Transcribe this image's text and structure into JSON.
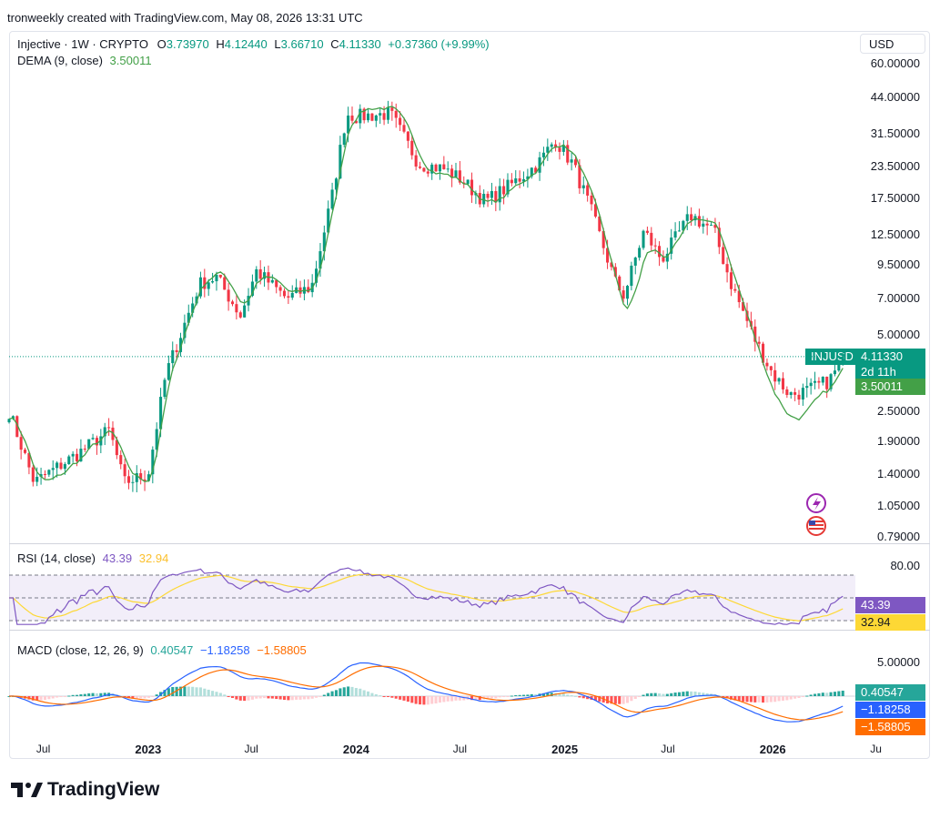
{
  "attribution": "tronweekly created with TradingView.com, May 08, 2026 13:31 UTC",
  "currency_button": "USD",
  "symbol": {
    "name": "Injective · 1W · CRYPTO",
    "open_label": "O",
    "open": "3.73970",
    "high_label": "H",
    "high": "4.12440",
    "low_label": "L",
    "low": "3.66710",
    "close_label": "C",
    "close": "4.11330",
    "change": "+0.37360 (+9.99%)"
  },
  "dema": {
    "label": "DEMA (9, close)",
    "value": "3.50011"
  },
  "rsi": {
    "label": "RSI (14, close)",
    "value": "43.39",
    "ma_value": "32.94",
    "level_label": "80.00"
  },
  "macd": {
    "label": "MACD (close, 12, 26, 9)",
    "hist": "0.40547",
    "macd": "−1.18258",
    "signal": "−1.58805",
    "level_label": "5.00000"
  },
  "price_tags": {
    "ticker": "INJUSD",
    "price": "4.11330",
    "countdown": "2d 11h",
    "dema": "3.50011"
  },
  "price_axis": [
    "60.00000",
    "44.00000",
    "31.50000",
    "23.50000",
    "17.50000",
    "12.50000",
    "9.50000",
    "7.00000",
    "5.00000",
    "2.50000",
    "1.90000",
    "1.40000",
    "1.05000",
    "0.79000"
  ],
  "time_axis": [
    {
      "label": "Jul",
      "bold": false
    },
    {
      "label": "2023",
      "bold": true
    },
    {
      "label": "Jul",
      "bold": false
    },
    {
      "label": "2024",
      "bold": true
    },
    {
      "label": "Jul",
      "bold": false
    },
    {
      "label": "2025",
      "bold": true
    },
    {
      "label": "Jul",
      "bold": false
    },
    {
      "label": "2026",
      "bold": true
    },
    {
      "label": "Ju",
      "bold": false
    }
  ],
  "logo_text": "TradingView",
  "colors": {
    "up": "#089981",
    "down": "#f23645",
    "dema": "#43a047",
    "rsi": "#7e57c2",
    "rsi_ma": "#fdd835",
    "macd": "#2962ff",
    "signal": "#ff6d00"
  },
  "chart_data": {
    "type": "candlestick",
    "x_range": [
      "2022-05",
      "2026-05"
    ],
    "y_scale": "log",
    "y_range": [
      0.79,
      60
    ],
    "anchors": [
      [
        "2022-05-02",
        2.5
      ],
      [
        "2022-06-15",
        1.3
      ],
      [
        "2022-09-01",
        1.7
      ],
      [
        "2022-10-25",
        2.1
      ],
      [
        "2022-11-20",
        1.3
      ],
      [
        "2023-01-01",
        1.4
      ],
      [
        "2023-02-01",
        3.5
      ],
      [
        "2023-04-01",
        8.0
      ],
      [
        "2023-05-01",
        8.5
      ],
      [
        "2023-06-12",
        6.0
      ],
      [
        "2023-07-10",
        9.0
      ],
      [
        "2023-09-01",
        7.0
      ],
      [
        "2023-10-15",
        7.8
      ],
      [
        "2023-11-20",
        18.0
      ],
      [
        "2023-12-15",
        38.0
      ],
      [
        "2024-01-01",
        37.0
      ],
      [
        "2024-03-01",
        38.0
      ],
      [
        "2024-04-20",
        24.0
      ],
      [
        "2024-06-01",
        23.0
      ],
      [
        "2024-07-01",
        21.0
      ],
      [
        "2024-08-15",
        17.0
      ],
      [
        "2024-10-01",
        20.0
      ],
      [
        "2024-11-15",
        24.0
      ],
      [
        "2024-12-15",
        30.0
      ],
      [
        "2025-01-15",
        24.0
      ],
      [
        "2025-02-15",
        16.0
      ],
      [
        "2025-04-01",
        8.0
      ],
      [
        "2025-04-15",
        7.2
      ],
      [
        "2025-05-20",
        13.0
      ],
      [
        "2025-06-20",
        10.0
      ],
      [
        "2025-08-10",
        15.0
      ],
      [
        "2025-09-20",
        13.0
      ],
      [
        "2025-10-20",
        8.0
      ],
      [
        "2025-12-01",
        4.8
      ],
      [
        "2026-01-01",
        3.5
      ],
      [
        "2026-02-01",
        2.9
      ],
      [
        "2026-03-01",
        3.0
      ],
      [
        "2026-04-10",
        3.3
      ],
      [
        "2026-05-08",
        4.1133
      ]
    ],
    "rsi_level": 80,
    "macd_level": 5.0
  }
}
